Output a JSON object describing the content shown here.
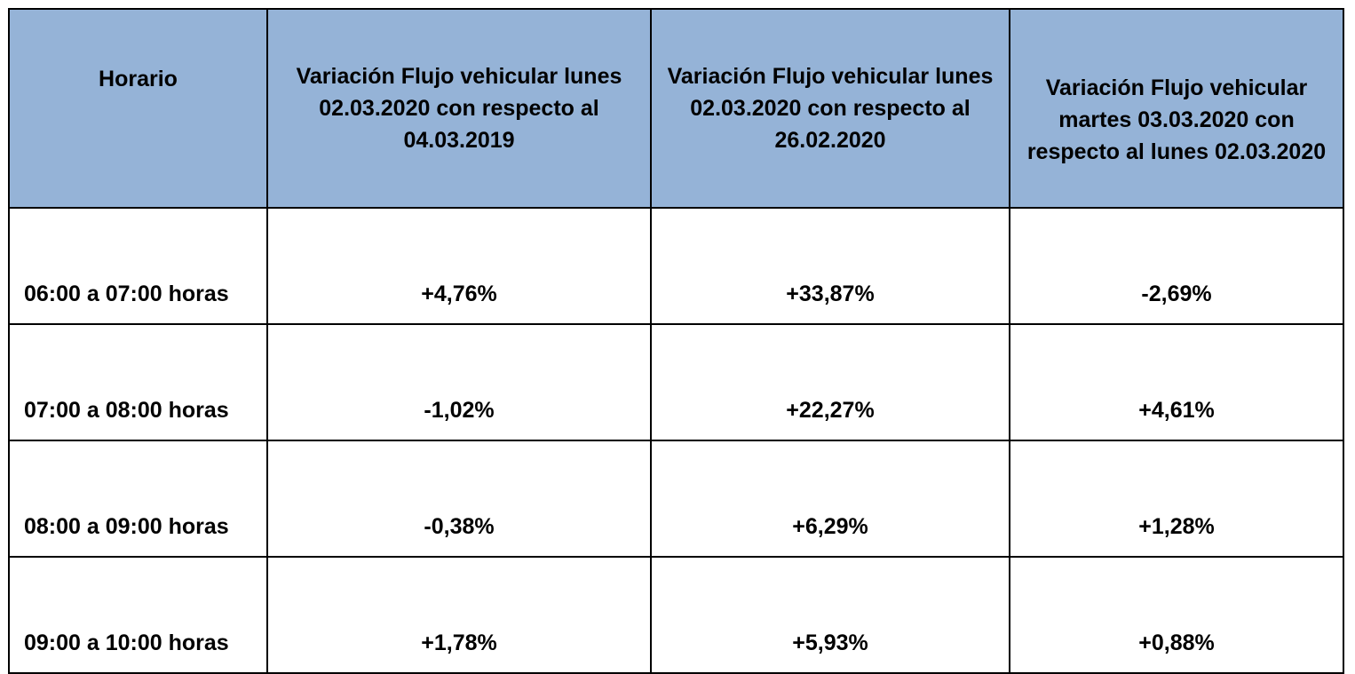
{
  "table": {
    "headers": [
      "Horario",
      "Variación Flujo vehicular lunes 02.03.2020 con respecto al 04.03.2019",
      "Variación Flujo vehicular lunes 02.03.2020 con respecto al 26.02.2020",
      "Variación Flujo vehicular martes 03.03.2020 con respecto al lunes 02.03.2020"
    ],
    "rows": [
      [
        "06:00 a 07:00 horas",
        "+4,76%",
        "+33,87%",
        "-2,69%"
      ],
      [
        "07:00 a 08:00 horas",
        "-1,02%",
        "+22,27%",
        "+4,61%"
      ],
      [
        "08:00 a 09:00 horas",
        "-0,38%",
        "+6,29%",
        "+1,28%"
      ],
      [
        "09:00 a 10:00 horas",
        "+1,78%",
        "+5,93%",
        "+0,88%"
      ]
    ],
    "header_color": "#95b3d7"
  }
}
